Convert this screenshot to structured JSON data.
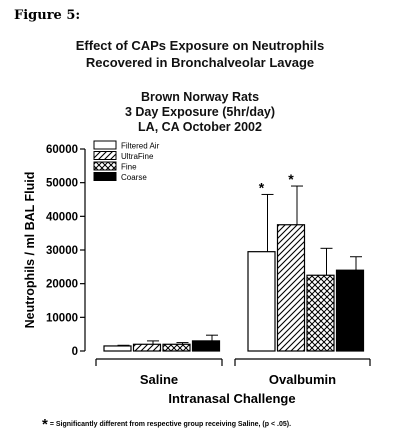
{
  "figure_label": "Figure 5:",
  "chart_data": {
    "type": "bar",
    "title": "Effect of CAPs Exposure on Neutrophils",
    "title_line2": "Recovered in Bronchalveolar Lavage",
    "subtitle_lines": [
      "Brown Norway Rats",
      "3 Day Exposure (5hr/day)",
      "LA, CA October 2002"
    ],
    "ylabel": "Neutrophils / ml BAL Fluid",
    "xlabel": "Intranasal Challenge",
    "ylim": [
      0,
      60000
    ],
    "yticks": [
      0,
      10000,
      20000,
      30000,
      40000,
      50000,
      60000
    ],
    "categories": [
      "Saline",
      "Ovalbumin"
    ],
    "legend_position": "top-left",
    "series": [
      {
        "name": "Filtered Air",
        "pattern": "white",
        "values": [
          1500,
          29500
        ],
        "errors": [
          200,
          17000
        ],
        "significant": [
          false,
          true
        ]
      },
      {
        "name": "UltraFine",
        "pattern": "diagonal-lines",
        "values": [
          2000,
          37500
        ],
        "errors": [
          1000,
          11500
        ],
        "significant": [
          false,
          true
        ]
      },
      {
        "name": "Fine",
        "pattern": "crosshatch",
        "values": [
          2000,
          22500
        ],
        "errors": [
          500,
          8000
        ],
        "significant": [
          false,
          false
        ]
      },
      {
        "name": "Coarse",
        "pattern": "black",
        "values": [
          3000,
          24000
        ],
        "errors": [
          1700,
          4000
        ],
        "significant": [
          false,
          false
        ]
      }
    ],
    "significance_marker": "*"
  },
  "footnote": {
    "star": "*",
    "text": "= Significantly different from respective group receiving Saline, (p < .05)."
  },
  "colors": {
    "bar_fill": "#ffffff",
    "bar_solid": "#000000",
    "axis": "#000000"
  }
}
